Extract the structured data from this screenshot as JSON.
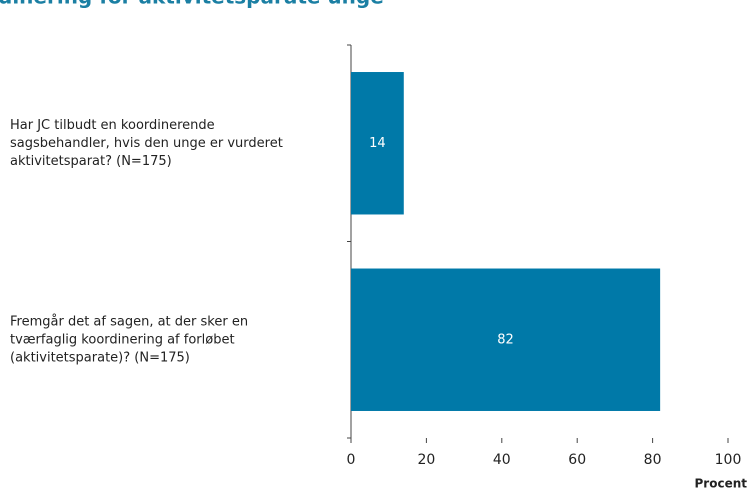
{
  "chart_data": {
    "type": "bar",
    "orientation": "horizontal",
    "title": "dinering for aktivitetsparate unge",
    "categories": [
      [
        "Har JC tilbudt en koordinerende",
        "sagsbehandler, hvis den unge er vurderet",
        "aktivitetsparat? (N=175)"
      ],
      [
        "Fremgår det af sagen, at der sker en",
        "tværfaglig koordinering af forløbet",
        "(aktivitetsparate)?  (N=175)"
      ]
    ],
    "values": [
      14,
      82
    ],
    "color": "#0079a8",
    "xlabel": "Procent",
    "xlim": [
      0,
      100
    ],
    "xticks": [
      0,
      20,
      40,
      60,
      80,
      100
    ]
  }
}
